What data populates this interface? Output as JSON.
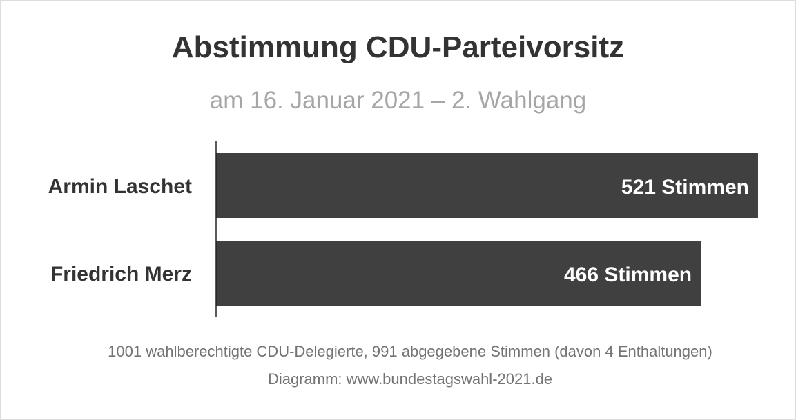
{
  "header": {
    "title": "Abstimmung CDU-Parteivorsitz",
    "subtitle": "am 16. Januar 2021 – 2. Wahlgang"
  },
  "chart_data": {
    "type": "bar",
    "orientation": "horizontal",
    "categories": [
      "Armin Laschet",
      "Friedrich Merz"
    ],
    "values": [
      521,
      466
    ],
    "value_labels": [
      "521 Stimmen",
      "466 Stimmen"
    ],
    "xlim": [
      0,
      525
    ],
    "bar_color": "#404040",
    "label_color": "#ffffff",
    "grid": false,
    "legend": "none"
  },
  "footer": {
    "note": "1001 wahlberechtigte CDU-Delegierte, 991 abgegebene Stimmen (davon 4 Enthaltungen)",
    "source": "Diagramm: www.bundestagswahl-2021.de"
  }
}
